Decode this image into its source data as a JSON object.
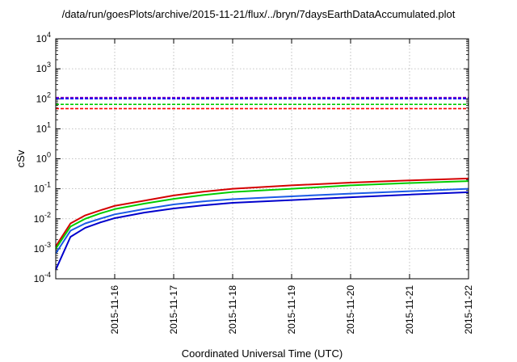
{
  "chart_data": {
    "type": "line",
    "title": "/data/run/goesPlots/archive/2015-11-21/flux/../bryn/7daysEarthDataAccumulated.plot",
    "xlabel": "Coordinated Universal Time (UTC)",
    "ylabel": "cSv",
    "yscale": "log",
    "ylim": [
      0.0001,
      10000
    ],
    "xlim": [
      "2015-11-15",
      "2015-11-22"
    ],
    "grid": true,
    "legend": "none",
    "y_tick_labels": [
      {
        "base": "10",
        "exp": "-4",
        "value": 0.0001
      },
      {
        "base": "10",
        "exp": "-3",
        "value": 0.001
      },
      {
        "base": "10",
        "exp": "-2",
        "value": 0.01
      },
      {
        "base": "10",
        "exp": "-1",
        "value": 0.1
      },
      {
        "base": "10",
        "exp": "0",
        "value": 1
      },
      {
        "base": "10",
        "exp": "1",
        "value": 10
      },
      {
        "base": "10",
        "exp": "2",
        "value": 100
      },
      {
        "base": "10",
        "exp": "3",
        "value": 1000
      },
      {
        "base": "10",
        "exp": "4",
        "value": 10000
      }
    ],
    "x_tick_labels": [
      "2015-11-16",
      "2015-11-17",
      "2015-11-18",
      "2015-11-19",
      "2015-11-20",
      "2015-11-21",
      "2015-11-22"
    ],
    "reference_lines": [
      {
        "color": "#8000c0",
        "y": 110,
        "style": "dashed"
      },
      {
        "color": "#0000ff",
        "y": 100,
        "style": "dashed"
      },
      {
        "color": "#00cc00",
        "y": 65,
        "style": "dashed"
      },
      {
        "color": "#ff0000",
        "y": 47,
        "style": "dashed"
      }
    ],
    "series": [
      {
        "color": "#d40000",
        "points": [
          [
            "2015-11-15",
            0.0012
          ],
          [
            "2015-11-15 06:00",
            0.007
          ],
          [
            "2015-11-15 12:00",
            0.013
          ],
          [
            "2015-11-15 18:00",
            0.019
          ],
          [
            "2015-11-16",
            0.027
          ],
          [
            "2015-11-16 12:00",
            0.04
          ],
          [
            "2015-11-17",
            0.06
          ],
          [
            "2015-11-17 12:00",
            0.08
          ],
          [
            "2015-11-18",
            0.1
          ],
          [
            "2015-11-19",
            0.13
          ],
          [
            "2015-11-20",
            0.16
          ],
          [
            "2015-11-21",
            0.19
          ],
          [
            "2015-11-22",
            0.22
          ]
        ]
      },
      {
        "color": "#00cc00",
        "points": [
          [
            "2015-11-15",
            0.001
          ],
          [
            "2015-11-15 06:00",
            0.0055
          ],
          [
            "2015-11-15 12:00",
            0.01
          ],
          [
            "2015-11-15 18:00",
            0.015
          ],
          [
            "2015-11-16",
            0.021
          ],
          [
            "2015-11-16 12:00",
            0.032
          ],
          [
            "2015-11-17",
            0.046
          ],
          [
            "2015-11-17 12:00",
            0.062
          ],
          [
            "2015-11-18",
            0.078
          ],
          [
            "2015-11-19",
            0.1
          ],
          [
            "2015-11-20",
            0.13
          ],
          [
            "2015-11-21",
            0.155
          ],
          [
            "2015-11-22",
            0.18
          ]
        ]
      },
      {
        "color": "#1a5ae6",
        "points": [
          [
            "2015-11-15",
            0.0007
          ],
          [
            "2015-11-15 06:00",
            0.004
          ],
          [
            "2015-11-15 12:00",
            0.007
          ],
          [
            "2015-11-15 18:00",
            0.01
          ],
          [
            "2015-11-16",
            0.014
          ],
          [
            "2015-11-16 12:00",
            0.021
          ],
          [
            "2015-11-17",
            0.03
          ],
          [
            "2015-11-17 12:00",
            0.038
          ],
          [
            "2015-11-18",
            0.045
          ],
          [
            "2015-11-19",
            0.056
          ],
          [
            "2015-11-20",
            0.069
          ],
          [
            "2015-11-21",
            0.083
          ],
          [
            "2015-11-22",
            0.1
          ]
        ]
      },
      {
        "color": "#0000cc",
        "points": [
          [
            "2015-11-15",
            0.0002
          ],
          [
            "2015-11-15 06:00",
            0.0025
          ],
          [
            "2015-11-15 12:00",
            0.005
          ],
          [
            "2015-11-15 18:00",
            0.0075
          ],
          [
            "2015-11-16",
            0.0105
          ],
          [
            "2015-11-16 12:00",
            0.016
          ],
          [
            "2015-11-17",
            0.022
          ],
          [
            "2015-11-17 12:00",
            0.028
          ],
          [
            "2015-11-18",
            0.034
          ],
          [
            "2015-11-19",
            0.042
          ],
          [
            "2015-11-20",
            0.052
          ],
          [
            "2015-11-21",
            0.064
          ],
          [
            "2015-11-22",
            0.077
          ]
        ]
      }
    ]
  }
}
